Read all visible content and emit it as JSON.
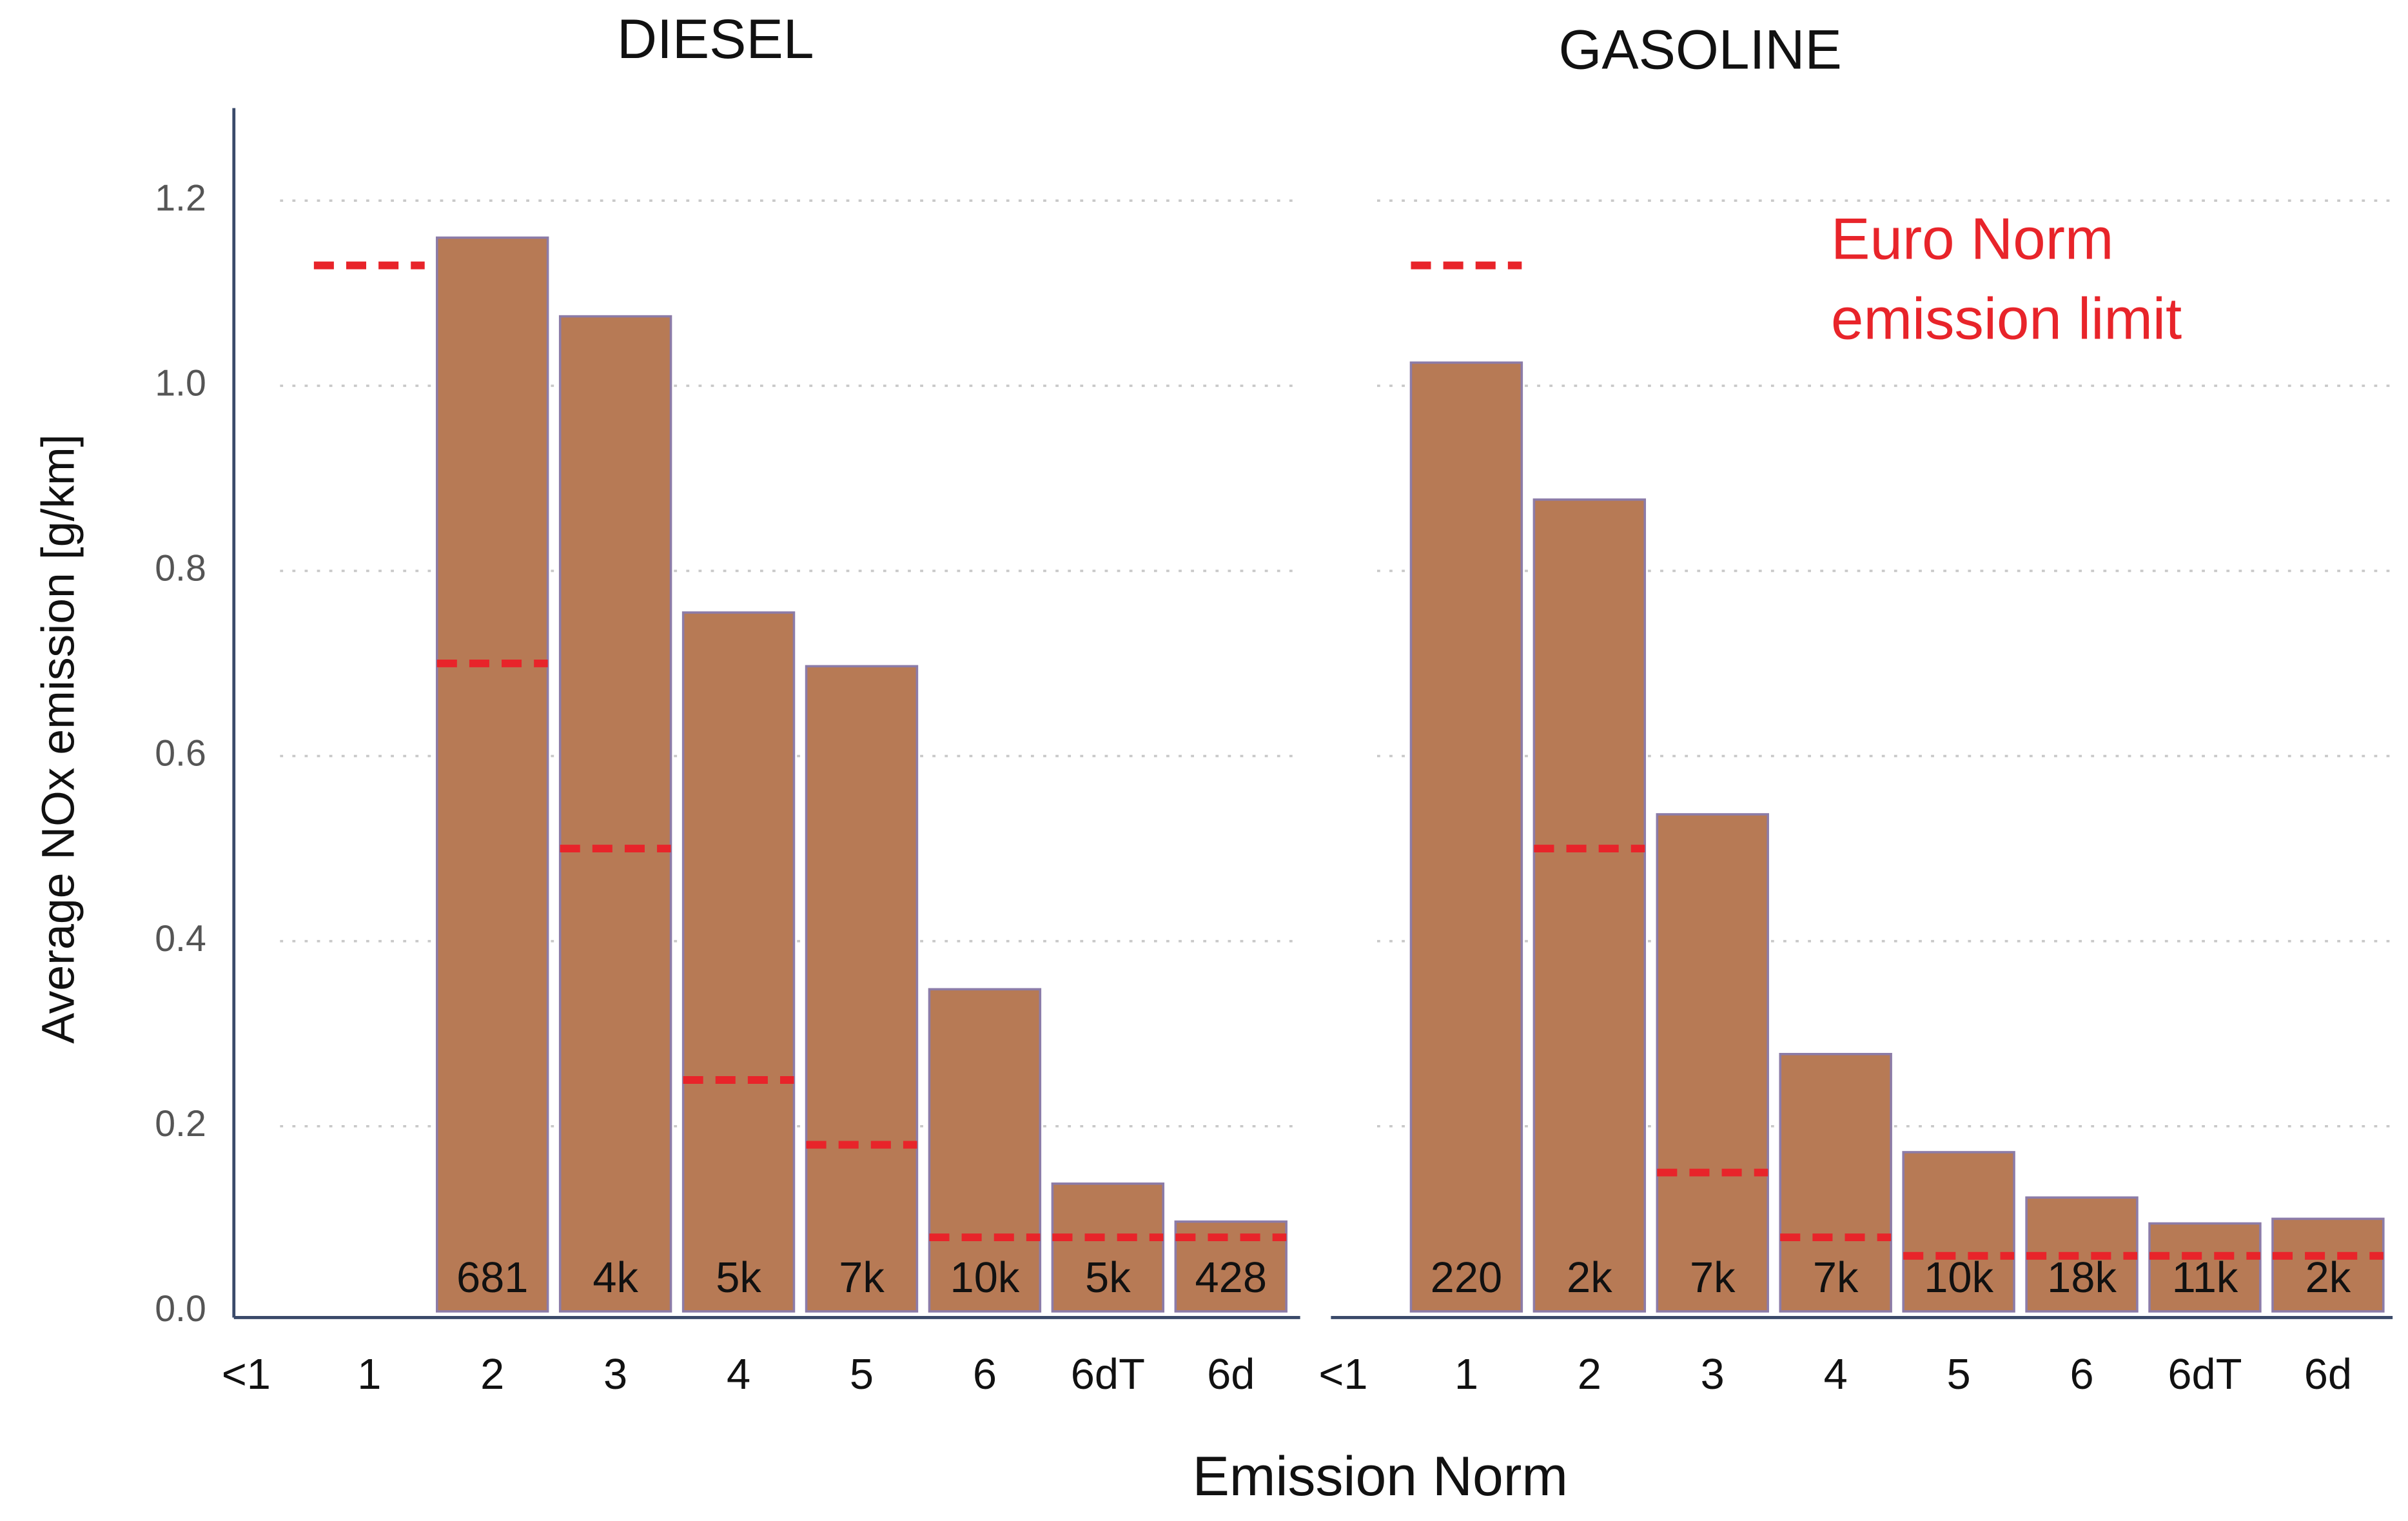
{
  "chart_data": [
    {
      "type": "bar",
      "title": "DIESEL",
      "ylabel": "Average NOx emission [g/km]",
      "xlabel": "Emission Norm",
      "categories": [
        "<1",
        "1",
        "2",
        "3",
        "4",
        "5",
        "6",
        "6dT",
        "6d"
      ],
      "values": [
        null,
        null,
        1.16,
        1.075,
        0.755,
        0.697,
        0.348,
        0.138,
        0.097
      ],
      "count_labels": [
        null,
        null,
        "681",
        "4k",
        "5k",
        "7k",
        "10k",
        "5k",
        "428"
      ],
      "limits": [
        null,
        1.13,
        0.7,
        0.5,
        0.25,
        0.18,
        0.08,
        0.08,
        0.08
      ],
      "color": "#b77a55",
      "limit_color": "#e8242a",
      "ylim": [
        0,
        1.3
      ],
      "yticks": [
        {
          "value": 0,
          "label": "0.0"
        },
        0.2,
        0.4,
        0.6,
        0.8,
        {
          "value": 1,
          "label": "1.0"
        },
        1.2
      ],
      "grid": true
    },
    {
      "type": "bar",
      "title": "GASOLINE",
      "annotation": [
        "Euro Norm",
        "emission limit"
      ],
      "categories": [
        "<1",
        "1",
        "2",
        "3",
        "4",
        "5",
        "6",
        "6dT",
        "6d"
      ],
      "values": [
        null,
        1.025,
        0.877,
        0.537,
        0.278,
        0.172,
        0.123,
        0.095,
        0.1
      ],
      "count_labels": [
        null,
        "220",
        "2k",
        "7k",
        "7k",
        "10k",
        "18k",
        "11k",
        "2k"
      ],
      "limits": [
        null,
        1.13,
        0.5,
        0.15,
        0.08,
        0.06,
        0.06,
        0.06,
        0.06
      ],
      "color": "#b77a55",
      "limit_color": "#e8242a",
      "ylim": [
        0,
        1.3
      ],
      "yticks": [
        {
          "value": 0,
          "label": "0.0"
        },
        0.2,
        0.4,
        0.6,
        0.8,
        {
          "value": 1,
          "label": "1.0"
        },
        1.2
      ],
      "grid": true
    }
  ]
}
